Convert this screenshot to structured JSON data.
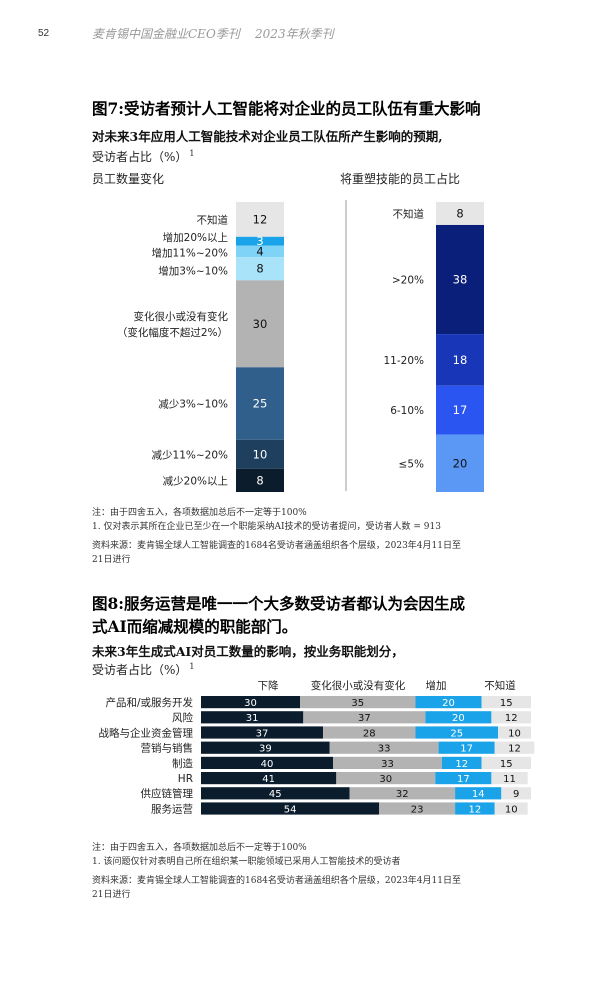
{
  "header": {
    "page_number": "52",
    "publication": "麦肯锡中国金融业CEO季刊    2023年秋季刊"
  },
  "figure7": {
    "title": "图7:受访者预计人工智能将对企业的员工队伍有重大影响",
    "subtitle": "对未来3年应用人工智能技术对企业员工队伍所产生影响的预期,",
    "subtitle2": "受访者占比（%）",
    "footnote_mark": "1",
    "note1": "注：由于四舍五入，各项数据加总后不一定等于100%",
    "note2": "1. 仅对表示其所在企业已至少在一个职能采纳AI技术的受访者提问，受访者人数 = 913",
    "source": "资料来源：麦肯锡全球人工智能调查的1684名受访者涵盖组织各个层级，2023年4月11日至",
    "source2": "21日进行"
  },
  "figure8": {
    "title_line1": "图8:服务运营是唯一一个大多数受访者都认为会因生成",
    "title_line2": "式AI而缩减规模的职能部门。",
    "subtitle": "未来3年生成式AI对员工数量的影响，按业务职能划分，",
    "subtitle2": "受访者占比（%）",
    "footnote_mark": "1",
    "note1": "注：由于四舍五入，各项数据加总后不一定等于100%",
    "note2": "1. 该问题仅针对表明自己所在组织某一职能领域已采用人工智能技术的受访者",
    "source": "资料来源：麦肯锡全球人工智能调查的1684名受访者涵盖组织各个层级，2023年4月11日至",
    "source2": "21日进行"
  },
  "chart_data": [
    {
      "type": "bar",
      "stacked": true,
      "title": "员工数量变化",
      "series": [
        {
          "name": "不知道",
          "values": [
            12
          ],
          "color": "#e6e6e6"
        },
        {
          "name": "增加20%以上",
          "values": [
            3
          ],
          "color": "#1aa3e8"
        },
        {
          "name": "增加11%~20%",
          "values": [
            4
          ],
          "color": "#7fd3f7"
        },
        {
          "name": "增加3%~10%",
          "values": [
            8
          ],
          "color": "#a9e3fa"
        },
        {
          "name": "变化很小或没有变化（变化幅度不超过2%）",
          "values": [
            30
          ],
          "color": "#b3b3b3"
        },
        {
          "name": "减少3%~10%",
          "values": [
            25
          ],
          "color": "#2f5f8a"
        },
        {
          "name": "减少11%~20%",
          "values": [
            10
          ],
          "color": "#1e3f5e"
        },
        {
          "name": "减少20%以上",
          "values": [
            8
          ],
          "color": "#0b1c2c"
        }
      ]
    },
    {
      "type": "bar",
      "stacked": true,
      "title": "将重塑技能的员工占比",
      "series": [
        {
          "name": "不知道",
          "values": [
            8
          ],
          "color": "#e6e6e6"
        },
        {
          "name": ">20%",
          "values": [
            38
          ],
          "color": "#0a1f7a"
        },
        {
          "name": "11-20%",
          "values": [
            18
          ],
          "color": "#1836b8"
        },
        {
          "name": "6-10%",
          "values": [
            17
          ],
          "color": "#2a55f0"
        },
        {
          "name": "≤5%",
          "values": [
            20
          ],
          "color": "#5b97f5"
        }
      ]
    },
    {
      "type": "bar",
      "orientation": "horizontal",
      "stacked": true,
      "categories": [
        "产品和/或服务开发",
        "风险",
        "战略与企业资金管理",
        "营销与销售",
        "制造",
        "HR",
        "供应链管理",
        "服务运营"
      ],
      "series": [
        {
          "name": "下降",
          "values": [
            30,
            31,
            37,
            39,
            40,
            41,
            45,
            54
          ],
          "color": "#0b1c2c"
        },
        {
          "name": "变化很小或没有变化",
          "values": [
            35,
            37,
            28,
            33,
            33,
            30,
            32,
            23
          ],
          "color": "#b3b3b3"
        },
        {
          "name": "增加",
          "values": [
            20,
            20,
            25,
            17,
            12,
            17,
            14,
            12
          ],
          "color": "#1aa3e8"
        },
        {
          "name": "不知道",
          "values": [
            15,
            12,
            10,
            12,
            15,
            11,
            9,
            10
          ],
          "color": "#e6e6e6"
        }
      ]
    }
  ]
}
